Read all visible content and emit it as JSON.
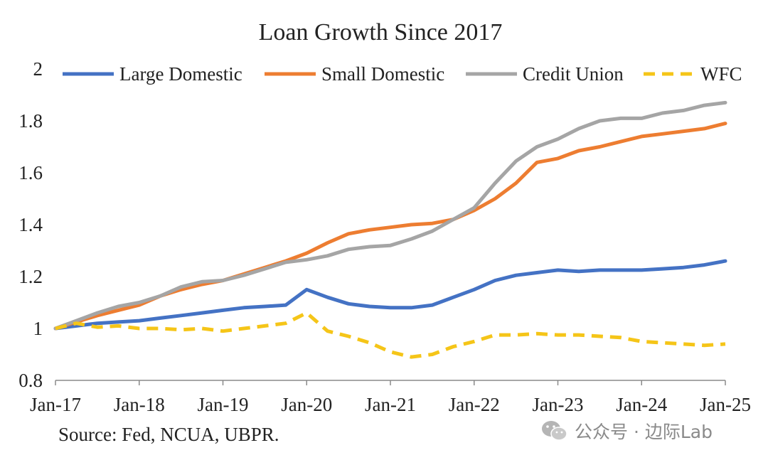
{
  "chart_data": {
    "type": "line",
    "title": "Loan Growth Since 2017",
    "xlabel": "",
    "ylabel": "",
    "x_tick_labels": [
      "Jan-17",
      "Jan-18",
      "Jan-19",
      "Jan-20",
      "Jan-21",
      "Jan-22",
      "Jan-23",
      "Jan-24",
      "Jan-25"
    ],
    "x_range": [
      0,
      8
    ],
    "y_ticks": [
      0.8,
      1,
      1.2,
      1.4,
      1.6,
      1.8,
      2
    ],
    "y_tick_labels": [
      "0.8",
      "1",
      "1.2",
      "1.4",
      "1.6",
      "1.8",
      "2"
    ],
    "ylim": [
      0.8,
      2
    ],
    "grid": false,
    "legend_position": "top",
    "x": [
      0,
      0.25,
      0.5,
      0.75,
      1,
      1.25,
      1.5,
      1.75,
      2,
      2.25,
      2.5,
      2.75,
      3,
      3.25,
      3.5,
      3.75,
      4,
      4.25,
      4.5,
      4.75,
      5,
      5.25,
      5.5,
      5.75,
      6,
      6.25,
      6.5,
      6.75,
      7,
      7.25,
      7.5,
      7.75,
      8
    ],
    "series": [
      {
        "name": "Large Domestic",
        "color": "#4472C4",
        "dash": "solid",
        "values": [
          1.0,
          1.01,
          1.02,
          1.025,
          1.03,
          1.04,
          1.05,
          1.06,
          1.07,
          1.08,
          1.085,
          1.09,
          1.15,
          1.12,
          1.095,
          1.085,
          1.08,
          1.08,
          1.09,
          1.12,
          1.15,
          1.185,
          1.205,
          1.215,
          1.225,
          1.22,
          1.225,
          1.225,
          1.225,
          1.23,
          1.235,
          1.245,
          1.26
        ]
      },
      {
        "name": "Small Domestic",
        "color": "#ED7D31",
        "dash": "solid",
        "values": [
          1.0,
          1.025,
          1.05,
          1.07,
          1.09,
          1.125,
          1.15,
          1.17,
          1.185,
          1.21,
          1.235,
          1.26,
          1.29,
          1.33,
          1.365,
          1.38,
          1.39,
          1.4,
          1.405,
          1.42,
          1.455,
          1.5,
          1.56,
          1.64,
          1.655,
          1.685,
          1.7,
          1.72,
          1.74,
          1.75,
          1.76,
          1.77,
          1.79
        ]
      },
      {
        "name": "Credit Union",
        "color": "#A5A5A5",
        "dash": "solid",
        "values": [
          1.0,
          1.03,
          1.06,
          1.085,
          1.1,
          1.125,
          1.16,
          1.18,
          1.185,
          1.205,
          1.23,
          1.255,
          1.265,
          1.28,
          1.305,
          1.315,
          1.32,
          1.345,
          1.375,
          1.42,
          1.465,
          1.56,
          1.645,
          1.7,
          1.73,
          1.77,
          1.8,
          1.81,
          1.81,
          1.83,
          1.84,
          1.86,
          1.87
        ]
      },
      {
        "name": "WFC",
        "color": "#F5C518",
        "dash": "dashed",
        "values": [
          1.0,
          1.02,
          1.005,
          1.01,
          1.0,
          1.0,
          0.995,
          1.0,
          0.99,
          1.0,
          1.01,
          1.02,
          1.06,
          0.99,
          0.97,
          0.945,
          0.91,
          0.89,
          0.9,
          0.93,
          0.95,
          0.975,
          0.975,
          0.98,
          0.975,
          0.975,
          0.97,
          0.965,
          0.95,
          0.945,
          0.94,
          0.935,
          0.94
        ]
      }
    ],
    "source": "Source: Fed, NCUA,  UBPR.",
    "watermark": "公众号 · 边际Lab"
  }
}
